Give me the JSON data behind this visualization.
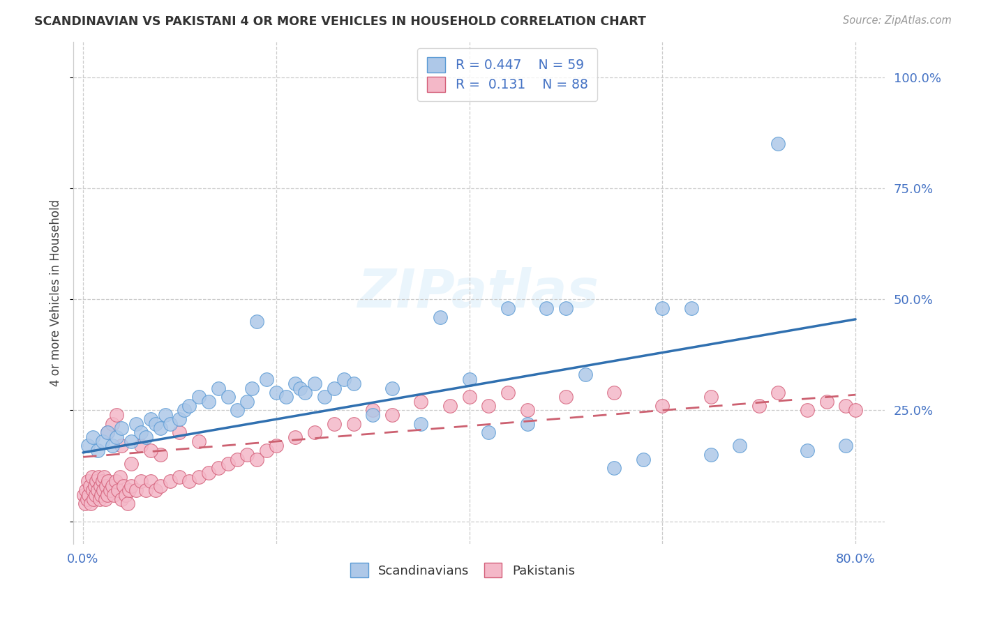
{
  "title": "SCANDINAVIAN VS PAKISTANI 4 OR MORE VEHICLES IN HOUSEHOLD CORRELATION CHART",
  "source": "Source: ZipAtlas.com",
  "ylabel": "4 or more Vehicles in Household",
  "blue_color": "#aec8e8",
  "pink_color": "#f4b8c8",
  "blue_edge_color": "#5b9bd5",
  "pink_edge_color": "#d4607a",
  "blue_line_color": "#3070b0",
  "pink_line_color": "#cc6070",
  "watermark": "ZIPatlas",
  "scan_x": [
    0.005,
    0.01,
    0.015,
    0.02,
    0.025,
    0.03,
    0.035,
    0.04,
    0.05,
    0.055,
    0.06,
    0.065,
    0.07,
    0.075,
    0.08,
    0.085,
    0.09,
    0.1,
    0.105,
    0.11,
    0.12,
    0.13,
    0.14,
    0.15,
    0.16,
    0.17,
    0.175,
    0.18,
    0.19,
    0.2,
    0.21,
    0.22,
    0.225,
    0.23,
    0.24,
    0.25,
    0.26,
    0.27,
    0.28,
    0.3,
    0.32,
    0.35,
    0.37,
    0.4,
    0.42,
    0.44,
    0.46,
    0.48,
    0.5,
    0.52,
    0.55,
    0.58,
    0.6,
    0.63,
    0.65,
    0.68,
    0.72,
    0.75,
    0.79
  ],
  "scan_y": [
    0.17,
    0.19,
    0.16,
    0.18,
    0.2,
    0.17,
    0.19,
    0.21,
    0.18,
    0.22,
    0.2,
    0.19,
    0.23,
    0.22,
    0.21,
    0.24,
    0.22,
    0.23,
    0.25,
    0.26,
    0.28,
    0.27,
    0.3,
    0.28,
    0.25,
    0.27,
    0.3,
    0.45,
    0.32,
    0.29,
    0.28,
    0.31,
    0.3,
    0.29,
    0.31,
    0.28,
    0.3,
    0.32,
    0.31,
    0.24,
    0.3,
    0.22,
    0.46,
    0.32,
    0.2,
    0.48,
    0.22,
    0.48,
    0.48,
    0.33,
    0.12,
    0.14,
    0.48,
    0.48,
    0.15,
    0.17,
    0.85,
    0.16,
    0.17
  ],
  "pak_x": [
    0.001,
    0.002,
    0.003,
    0.004,
    0.005,
    0.006,
    0.007,
    0.008,
    0.009,
    0.01,
    0.011,
    0.012,
    0.013,
    0.014,
    0.015,
    0.016,
    0.017,
    0.018,
    0.019,
    0.02,
    0.021,
    0.022,
    0.023,
    0.024,
    0.025,
    0.026,
    0.028,
    0.03,
    0.032,
    0.034,
    0.036,
    0.038,
    0.04,
    0.042,
    0.044,
    0.046,
    0.048,
    0.05,
    0.055,
    0.06,
    0.065,
    0.07,
    0.075,
    0.08,
    0.09,
    0.1,
    0.11,
    0.12,
    0.13,
    0.14,
    0.15,
    0.16,
    0.17,
    0.18,
    0.19,
    0.2,
    0.22,
    0.24,
    0.26,
    0.28,
    0.3,
    0.32,
    0.35,
    0.38,
    0.4,
    0.42,
    0.44,
    0.46,
    0.5,
    0.55,
    0.6,
    0.65,
    0.7,
    0.72,
    0.75,
    0.77,
    0.79,
    0.8,
    0.1,
    0.12,
    0.08,
    0.05,
    0.06,
    0.07,
    0.025,
    0.03,
    0.035,
    0.04
  ],
  "pak_y": [
    0.06,
    0.04,
    0.07,
    0.05,
    0.09,
    0.06,
    0.08,
    0.04,
    0.1,
    0.07,
    0.05,
    0.08,
    0.06,
    0.09,
    0.07,
    0.1,
    0.05,
    0.08,
    0.06,
    0.09,
    0.07,
    0.1,
    0.05,
    0.08,
    0.06,
    0.09,
    0.07,
    0.08,
    0.06,
    0.09,
    0.07,
    0.1,
    0.05,
    0.08,
    0.06,
    0.04,
    0.07,
    0.08,
    0.07,
    0.09,
    0.07,
    0.09,
    0.07,
    0.08,
    0.09,
    0.1,
    0.09,
    0.1,
    0.11,
    0.12,
    0.13,
    0.14,
    0.15,
    0.14,
    0.16,
    0.17,
    0.19,
    0.2,
    0.22,
    0.22,
    0.25,
    0.24,
    0.27,
    0.26,
    0.28,
    0.26,
    0.29,
    0.25,
    0.28,
    0.29,
    0.26,
    0.28,
    0.26,
    0.29,
    0.25,
    0.27,
    0.26,
    0.25,
    0.2,
    0.18,
    0.15,
    0.13,
    0.17,
    0.16,
    0.2,
    0.22,
    0.24,
    0.17
  ],
  "blue_line_start_y": 0.155,
  "blue_line_end_y": 0.455,
  "pink_line_start_y": 0.145,
  "pink_line_end_y": 0.285,
  "xmin": 0.0,
  "xmax": 0.8,
  "ymin": 0.0,
  "ymax": 1.0,
  "ytick_vals": [
    0.0,
    0.25,
    0.5,
    0.75,
    1.0
  ],
  "ytick_labels": [
    "",
    "25.0%",
    "50.0%",
    "75.0%",
    "100.0%"
  ],
  "xtick_vals": [
    0.0,
    0.2,
    0.4,
    0.6,
    0.8
  ],
  "xtick_labels": [
    "0.0%",
    "",
    "",
    "",
    "80.0%"
  ]
}
